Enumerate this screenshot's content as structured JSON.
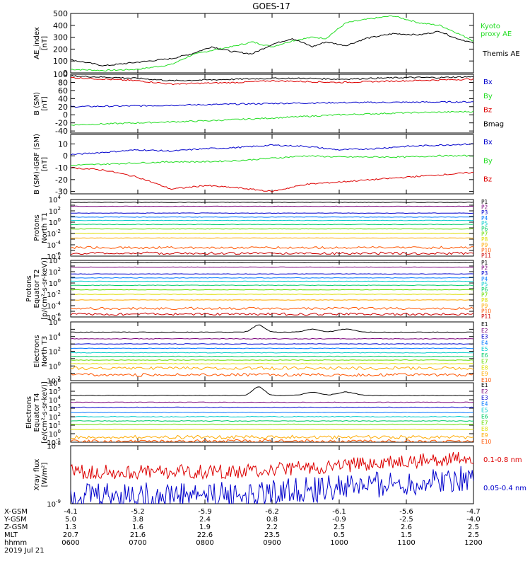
{
  "title": "GOES-17",
  "colors": {
    "black": "#000000",
    "green": "#22dd22",
    "blue": "#0000cc",
    "red": "#dd0000",
    "p": [
      "#000000",
      "#7a007a",
      "#0000cc",
      "#0077ff",
      "#00cccc",
      "#00cc66",
      "#66dd00",
      "#dddd00",
      "#ffaa00",
      "#ff5500",
      "#cc0000"
    ]
  },
  "chart_data": [
    {
      "type": "line",
      "id": "ae",
      "ylabel": "AE_index [nT]",
      "ylim": [
        0,
        500
      ],
      "yticks": [
        "0",
        "100",
        "200",
        "300",
        "400",
        "500"
      ],
      "xlim": [
        0,
        6
      ],
      "series": [
        {
          "name": "Kyoto proxy AE",
          "color": "green",
          "x": [
            0,
            0.5,
            1,
            1.5,
            1.8,
            2.1,
            2.4,
            2.7,
            3,
            3.3,
            3.6,
            3.8,
            4.1,
            4.4,
            4.8,
            5.2,
            5.5,
            5.7,
            6
          ],
          "y": [
            30,
            20,
            30,
            70,
            150,
            190,
            220,
            260,
            220,
            270,
            300,
            290,
            420,
            450,
            480,
            420,
            400,
            350,
            270
          ]
        },
        {
          "name": "Themis AE",
          "color": "black",
          "x": [
            0,
            0.5,
            1,
            1.5,
            1.8,
            2.1,
            2.4,
            2.7,
            3,
            3.3,
            3.6,
            3.8,
            4.1,
            4.4,
            4.8,
            5.2,
            5.5,
            5.7,
            6
          ],
          "y": [
            110,
            60,
            90,
            120,
            160,
            220,
            180,
            160,
            240,
            290,
            220,
            260,
            230,
            290,
            330,
            320,
            350,
            300,
            250
          ]
        }
      ],
      "legend": [
        "Kyoto proxy AE",
        "Themis AE"
      ]
    },
    {
      "type": "line",
      "id": "bsm",
      "ylabel": "B (SM) [nT]",
      "ylim": [
        -45,
        100
      ],
      "yticks": [
        "-40",
        "-20",
        "0",
        "20",
        "40",
        "60",
        "80",
        "100"
      ],
      "series": [
        {
          "name": "Bx",
          "color": "blue",
          "x": [
            0,
            1,
            2,
            3,
            4,
            5,
            6
          ],
          "y": [
            20,
            22,
            25,
            28,
            30,
            31,
            32
          ]
        },
        {
          "name": "By",
          "color": "green",
          "x": [
            0,
            1,
            2,
            3,
            4,
            5,
            6
          ],
          "y": [
            -25,
            -20,
            -15,
            -8,
            0,
            5,
            8
          ]
        },
        {
          "name": "Bz",
          "color": "red",
          "x": [
            0,
            0.5,
            1,
            1.5,
            2,
            2.5,
            3,
            3.5,
            4,
            4.5,
            5,
            5.5,
            6
          ],
          "y": [
            92,
            88,
            84,
            76,
            78,
            80,
            84,
            82,
            80,
            82,
            84,
            86,
            88
          ]
        },
        {
          "name": "Bmag",
          "color": "black",
          "x": [
            0,
            0.5,
            1,
            1.5,
            2,
            2.5,
            3,
            3.5,
            4,
            4.5,
            5,
            5.5,
            6
          ],
          "y": [
            96,
            93,
            90,
            84,
            86,
            88,
            90,
            90,
            88,
            90,
            92,
            92,
            94
          ]
        }
      ],
      "legend": [
        "Bx",
        "By",
        "Bz",
        "Bmag"
      ]
    },
    {
      "type": "line",
      "id": "bigrf",
      "ylabel": "B (SM)-IGRF (SM) [nT]",
      "ylim": [
        -32,
        18
      ],
      "yticks": [
        "-30",
        "-20",
        "-10",
        "0",
        "10"
      ],
      "series": [
        {
          "name": "Bx",
          "color": "blue",
          "x": [
            0,
            0.5,
            1,
            1.5,
            2,
            2.5,
            3,
            3.5,
            4,
            4.5,
            5,
            5.5,
            6
          ],
          "y": [
            1,
            3,
            5,
            4,
            6,
            7,
            9,
            8,
            5,
            6,
            8,
            9,
            10
          ]
        },
        {
          "name": "By",
          "color": "green",
          "x": [
            0,
            0.5,
            1,
            1.5,
            2,
            2.5,
            3,
            3.5,
            4,
            4.5,
            5,
            5.5,
            6
          ],
          "y": [
            -8,
            -7,
            -6,
            -5,
            -5,
            -4,
            -2,
            0,
            -1,
            -1,
            -1,
            0,
            0
          ]
        },
        {
          "name": "Bz",
          "color": "red",
          "x": [
            0,
            0.5,
            1,
            1.5,
            2,
            2.5,
            3,
            3.5,
            4,
            4.5,
            5,
            5.5,
            6
          ],
          "y": [
            -10,
            -12,
            -18,
            -28,
            -25,
            -27,
            -30,
            -24,
            -22,
            -20,
            -18,
            -16,
            -14
          ]
        }
      ],
      "legend": [
        "Bx",
        "By",
        "Bz"
      ]
    },
    {
      "type": "line",
      "id": "pnt1",
      "logscale": true,
      "ylabel": "Protons North T1",
      "yexp": [
        -6,
        4
      ],
      "levels": [
        3.5,
        2.8,
        1.6,
        0.9,
        0.3,
        -0.4,
        -1.2,
        -2.0,
        -2.8,
        -4.5,
        -5.5
      ],
      "legend": [
        "P1",
        "P2",
        "P3",
        "P4",
        "P5",
        "P6",
        "P7",
        "P8",
        "P9",
        "P10",
        "P11"
      ]
    },
    {
      "type": "line",
      "id": "pet2",
      "logscale": true,
      "ylabel": "Protons Equator T2 [p/(cm²-s-sr-keV)]",
      "yexp": [
        -6,
        4
      ],
      "levels": [
        3.6,
        2.8,
        1.6,
        0.9,
        0.3,
        -0.4,
        -1.2,
        -2.0,
        -3.0,
        -4.5,
        -5.5
      ],
      "legend": [
        "P1",
        "P2",
        "P3",
        "P4",
        "P5",
        "P6",
        "P7",
        "P8",
        "P9",
        "P10",
        "P11"
      ]
    },
    {
      "type": "line",
      "id": "ent3",
      "logscale": true,
      "ylabel": "Electrons North T3",
      "yexp": [
        -2,
        6
      ],
      "levels": [
        4.6,
        3.7,
        3.0,
        2.4,
        1.8,
        1.3,
        0.8,
        0.3,
        -0.3,
        -1.2
      ],
      "legend": [
        "E1",
        "E2",
        "E3",
        "E4",
        "E5",
        "E6",
        "E7",
        "E8",
        "E9",
        "E10"
      ]
    },
    {
      "type": "line",
      "id": "eet4",
      "logscale": true,
      "ylabel": "Electrons Equator T4 [e/(cm²-s-sr-keV)]",
      "yexp": [
        -1,
        6
      ],
      "levels": [
        4.5,
        3.7,
        3.1,
        2.5,
        2.0,
        1.5,
        1.1,
        0.5,
        -0.4,
        -0.9
      ],
      "legend": [
        "E1",
        "E2",
        "E3",
        "E4",
        "E5",
        "E6",
        "E7",
        "E8",
        "E9",
        "E10"
      ]
    },
    {
      "type": "line",
      "id": "xray",
      "logscale": true,
      "ylabel": "Xray flux [W/m²]",
      "yexp": [
        -9,
        -8
      ],
      "legend": [
        "0.1-0.8 nm",
        "0.05-0.4 nm"
      ]
    }
  ],
  "panel_labels": {
    "ae": [
      "AE_index",
      "[nT]"
    ],
    "bsm": [
      "B (SM)",
      "[nT]"
    ],
    "bigrf": [
      "B (SM)-IGRF (SM)",
      "[nT]"
    ],
    "pnt1": [
      "Protons",
      "North T1"
    ],
    "pet2": [
      "Protons",
      "Equator T2",
      "[p/(cm²-s-sr-keV)]"
    ],
    "ent3": [
      "Electrons",
      "North T3"
    ],
    "eet4": [
      "Electrons",
      "Equator T4",
      "[e/(cm²-s-sr-keV)]"
    ],
    "xray": [
      "Xray flux",
      "[W/m²]"
    ]
  },
  "ephemeris": {
    "labels": [
      "X-GSM",
      "Y-GSM",
      "Z-GSM",
      "MLT",
      "hhmm",
      "2019 Jul 21"
    ],
    "columns": [
      [
        "-4.1",
        "5.0",
        "1.3",
        "20.7",
        "0600"
      ],
      [
        "-5.2",
        "3.8",
        "1.6",
        "21.6",
        "0700"
      ],
      [
        "-5.9",
        "2.4",
        "1.9",
        "22.6",
        "0800"
      ],
      [
        "-6.2",
        "0.8",
        "2.2",
        "23.5",
        "0900"
      ],
      [
        "-6.1",
        "-0.9",
        "2.5",
        "0.5",
        "1000"
      ],
      [
        "-5.6",
        "-2.5",
        "2.6",
        "1.5",
        "1100"
      ],
      [
        "-4.7",
        "-4.0",
        "2.5",
        "2.5",
        "1200"
      ]
    ]
  }
}
